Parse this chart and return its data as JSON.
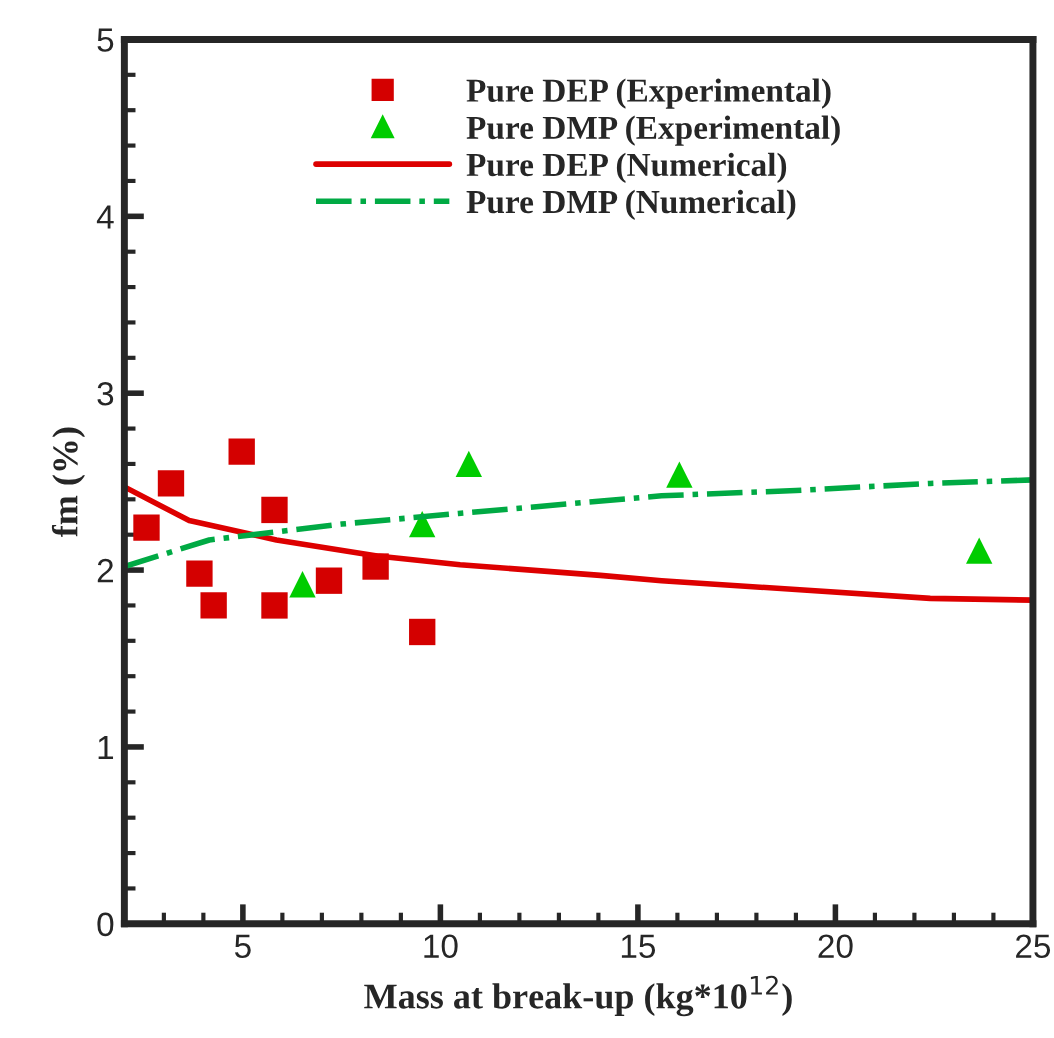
{
  "chart_data": {
    "type": "scatter",
    "xlabel": "Mass at break-up (kg*10$^{12}$)",
    "ylabel": "fm (%)",
    "xlim": [
      2,
      25
    ],
    "xticks": [
      5,
      10,
      15,
      20,
      25
    ],
    "ylim": [
      0,
      5
    ],
    "yticks": [
      0,
      1,
      2,
      3,
      4,
      5
    ],
    "grid": false,
    "legend": "top",
    "series": [
      {
        "name": "Pure DEP (Experimental)",
        "marker": "square",
        "color": "#d40000",
        "x": [
          2.56,
          3.18,
          3.9,
          4.26,
          4.97,
          5.8,
          5.8,
          7.18,
          8.36,
          9.54
        ],
        "values": [
          2.24,
          2.49,
          1.98,
          1.8,
          2.67,
          2.34,
          1.8,
          1.94,
          2.02,
          1.65
        ]
      },
      {
        "name": "Pure DMP (Experimental)",
        "marker": "triangle",
        "color": "#00cc00",
        "x": [
          6.51,
          9.54,
          10.72,
          16.05,
          23.64
        ],
        "values": [
          1.92,
          2.26,
          2.6,
          2.54,
          2.11
        ]
      },
      {
        "name": "Pure DEP (Numerical)",
        "type": "line",
        "line_style": "solid",
        "color": "#dd0000",
        "x": [
          2.0,
          3.64,
          5.85,
          8.4,
          10.5,
          14.05,
          15.6,
          19.0,
          22.4,
          25.0
        ],
        "values": [
          2.47,
          2.28,
          2.17,
          2.08,
          2.03,
          1.97,
          1.94,
          1.89,
          1.84,
          1.83
        ]
      },
      {
        "name": "Pure DMP (Numerical)",
        "type": "line",
        "line_style": "dashdot",
        "color": "#00aa44",
        "x": [
          2.0,
          4.15,
          7.5,
          10.46,
          15.6,
          19.0,
          22.4,
          25.0
        ],
        "values": [
          2.02,
          2.17,
          2.26,
          2.32,
          2.42,
          2.45,
          2.49,
          2.51
        ]
      }
    ]
  }
}
